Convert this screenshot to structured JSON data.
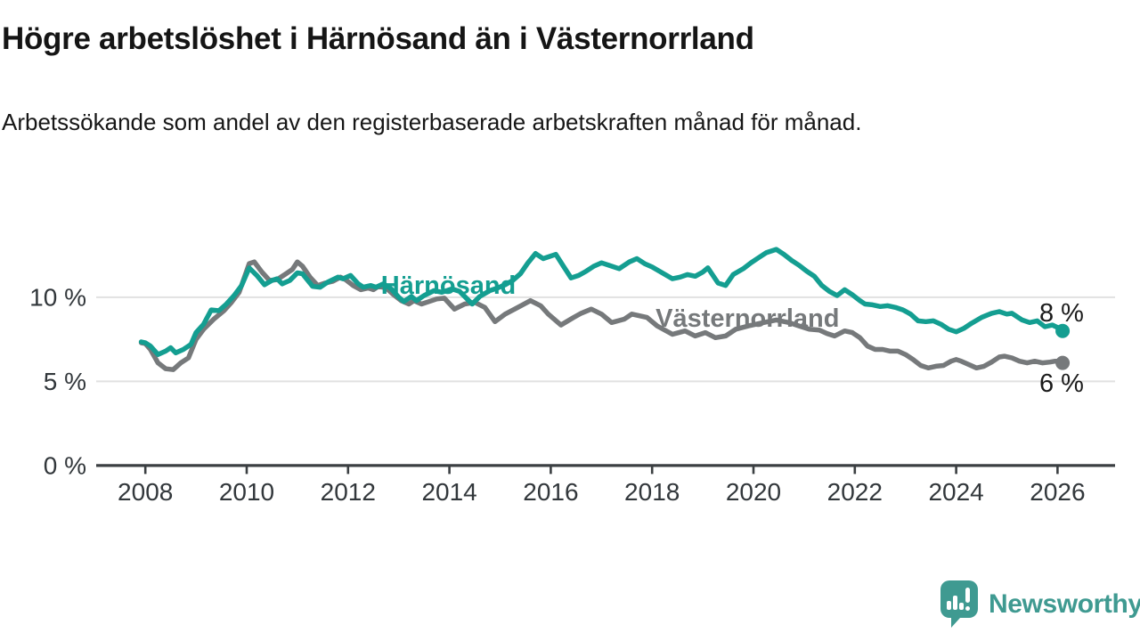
{
  "title": "Högre arbetslöshet i Härnösand än i Västernorrland",
  "subtitle": "Arbetssökande som andel av den registerbaserade arbetskraften månad för månad.",
  "branding": {
    "logo_text": "Newsworthy",
    "logo_icon": "bar-chart-speech-bubble-icon",
    "logo_color": "#3f9a91"
  },
  "colors": {
    "background": "#ffffff",
    "gridline": "#e1e1e1",
    "axis_line": "#3b3f42",
    "axis_text": "#32373b",
    "end_label_text": "#1b1b1b",
    "harnosand": "#149e91",
    "vasternorrland": "#76797b"
  },
  "chart_data": {
    "type": "line",
    "title": "Högre arbetslöshet i Härnösand än i Västernorrland",
    "xlabel": "",
    "ylabel": "Arbetssökande som andel av den registerbaserade arbetskraften (%)",
    "x_axis": {
      "ticks": [
        2008,
        2010,
        2012,
        2014,
        2016,
        2018,
        2020,
        2022,
        2024,
        2026
      ],
      "range": [
        2007.0,
        2027.1
      ]
    },
    "y_axis": {
      "ticks": [
        {
          "value": 0,
          "label": "0 %"
        },
        {
          "value": 5,
          "label": "5 %"
        },
        {
          "value": 10,
          "label": "10 %"
        }
      ],
      "gridlines": [
        5,
        10
      ],
      "range": [
        0,
        13.8
      ],
      "unit": "%"
    },
    "legend_position": "inline-labels",
    "grid": true,
    "series": [
      {
        "id": "vasternorrland",
        "name": "Västernorrland",
        "color": "#76797b",
        "label_pos": {
          "x": 2018.07,
          "y": 8.25
        },
        "end_label": "6 %",
        "end_label_pos": {
          "x": 2026.52,
          "y": 4.39
        },
        "latest_value": 6.1,
        "points": [
          [
            2007.92,
            7.3
          ],
          [
            2008.0,
            7.25
          ],
          [
            2008.1,
            6.9
          ],
          [
            2008.25,
            6.1
          ],
          [
            2008.4,
            5.75
          ],
          [
            2008.55,
            5.7
          ],
          [
            2008.7,
            6.1
          ],
          [
            2008.85,
            6.4
          ],
          [
            2009.0,
            7.5
          ],
          [
            2009.15,
            8.1
          ],
          [
            2009.35,
            8.7
          ],
          [
            2009.55,
            9.2
          ],
          [
            2009.7,
            9.7
          ],
          [
            2009.85,
            10.3
          ],
          [
            2010.05,
            12.0
          ],
          [
            2010.15,
            12.1
          ],
          [
            2010.3,
            11.5
          ],
          [
            2010.45,
            11.0
          ],
          [
            2010.6,
            11.05
          ],
          [
            2010.75,
            11.35
          ],
          [
            2010.9,
            11.65
          ],
          [
            2011.0,
            12.1
          ],
          [
            2011.1,
            11.85
          ],
          [
            2011.25,
            11.2
          ],
          [
            2011.4,
            10.7
          ],
          [
            2011.55,
            10.85
          ],
          [
            2011.7,
            10.95
          ],
          [
            2011.85,
            11.2
          ],
          [
            2011.95,
            11.05
          ],
          [
            2012.1,
            10.7
          ],
          [
            2012.25,
            10.45
          ],
          [
            2012.4,
            10.55
          ],
          [
            2012.5,
            10.45
          ],
          [
            2012.6,
            10.65
          ],
          [
            2012.75,
            10.55
          ],
          [
            2012.9,
            10.15
          ],
          [
            2013.05,
            9.8
          ],
          [
            2013.2,
            9.6
          ],
          [
            2013.3,
            9.8
          ],
          [
            2013.45,
            9.6
          ],
          [
            2013.6,
            9.75
          ],
          [
            2013.75,
            9.9
          ],
          [
            2013.9,
            9.95
          ],
          [
            2014.1,
            9.3
          ],
          [
            2014.3,
            9.6
          ],
          [
            2014.5,
            9.7
          ],
          [
            2014.7,
            9.4
          ],
          [
            2014.9,
            8.55
          ],
          [
            2015.1,
            9.0
          ],
          [
            2015.35,
            9.4
          ],
          [
            2015.6,
            9.8
          ],
          [
            2015.8,
            9.5
          ],
          [
            2015.95,
            9.0
          ],
          [
            2016.2,
            8.35
          ],
          [
            2016.45,
            8.8
          ],
          [
            2016.6,
            9.05
          ],
          [
            2016.8,
            9.3
          ],
          [
            2017.0,
            9.0
          ],
          [
            2017.2,
            8.5
          ],
          [
            2017.45,
            8.7
          ],
          [
            2017.6,
            9.0
          ],
          [
            2017.9,
            8.8
          ],
          [
            2018.1,
            8.3
          ],
          [
            2018.4,
            7.8
          ],
          [
            2018.65,
            8.0
          ],
          [
            2018.85,
            7.7
          ],
          [
            2019.05,
            7.9
          ],
          [
            2019.25,
            7.6
          ],
          [
            2019.45,
            7.7
          ],
          [
            2019.65,
            8.1
          ],
          [
            2019.9,
            8.3
          ],
          [
            2020.2,
            8.5
          ],
          [
            2020.45,
            8.65
          ],
          [
            2020.7,
            8.5
          ],
          [
            2020.9,
            8.3
          ],
          [
            2021.1,
            8.1
          ],
          [
            2021.3,
            8.05
          ],
          [
            2021.45,
            7.85
          ],
          [
            2021.6,
            7.7
          ],
          [
            2021.8,
            8.0
          ],
          [
            2021.95,
            7.9
          ],
          [
            2022.1,
            7.6
          ],
          [
            2022.25,
            7.1
          ],
          [
            2022.4,
            6.9
          ],
          [
            2022.55,
            6.9
          ],
          [
            2022.7,
            6.8
          ],
          [
            2022.85,
            6.8
          ],
          [
            2023.0,
            6.6
          ],
          [
            2023.15,
            6.3
          ],
          [
            2023.3,
            5.95
          ],
          [
            2023.45,
            5.8
          ],
          [
            2023.6,
            5.9
          ],
          [
            2023.75,
            5.95
          ],
          [
            2023.9,
            6.2
          ],
          [
            2024.0,
            6.3
          ],
          [
            2024.1,
            6.2
          ],
          [
            2024.25,
            6.0
          ],
          [
            2024.4,
            5.8
          ],
          [
            2024.55,
            5.9
          ],
          [
            2024.7,
            6.15
          ],
          [
            2024.85,
            6.45
          ],
          [
            2024.95,
            6.5
          ],
          [
            2025.1,
            6.4
          ],
          [
            2025.25,
            6.2
          ],
          [
            2025.4,
            6.1
          ],
          [
            2025.55,
            6.2
          ],
          [
            2025.7,
            6.1
          ],
          [
            2025.85,
            6.15
          ],
          [
            2025.95,
            6.2
          ],
          [
            2026.05,
            6.2
          ],
          [
            2026.1,
            6.1
          ]
        ]
      },
      {
        "id": "harnosand",
        "name": "Härnösand",
        "color": "#149e91",
        "label_pos": {
          "x": 2012.65,
          "y": 10.2
        },
        "end_label": "8 %",
        "end_label_pos": {
          "x": 2026.52,
          "y": 8.57
        },
        "latest_value": 8.0,
        "points": [
          [
            2007.92,
            7.35
          ],
          [
            2008.0,
            7.3
          ],
          [
            2008.1,
            7.1
          ],
          [
            2008.25,
            6.6
          ],
          [
            2008.4,
            6.8
          ],
          [
            2008.5,
            7.0
          ],
          [
            2008.6,
            6.7
          ],
          [
            2008.75,
            6.9
          ],
          [
            2008.9,
            7.2
          ],
          [
            2009.0,
            7.9
          ],
          [
            2009.15,
            8.4
          ],
          [
            2009.3,
            9.25
          ],
          [
            2009.45,
            9.2
          ],
          [
            2009.6,
            9.6
          ],
          [
            2009.75,
            10.1
          ],
          [
            2009.9,
            10.7
          ],
          [
            2010.05,
            11.75
          ],
          [
            2010.2,
            11.3
          ],
          [
            2010.35,
            10.75
          ],
          [
            2010.5,
            11.0
          ],
          [
            2010.6,
            11.1
          ],
          [
            2010.7,
            10.8
          ],
          [
            2010.85,
            11.0
          ],
          [
            2011.0,
            11.45
          ],
          [
            2011.1,
            11.4
          ],
          [
            2011.3,
            10.65
          ],
          [
            2011.45,
            10.6
          ],
          [
            2011.6,
            10.9
          ],
          [
            2011.8,
            11.2
          ],
          [
            2011.9,
            11.1
          ],
          [
            2012.05,
            11.3
          ],
          [
            2012.2,
            10.8
          ],
          [
            2012.3,
            10.6
          ],
          [
            2012.45,
            10.7
          ],
          [
            2012.55,
            10.6
          ],
          [
            2012.7,
            10.8
          ],
          [
            2012.85,
            10.5
          ],
          [
            2013.0,
            10.0
          ],
          [
            2013.1,
            9.75
          ],
          [
            2013.25,
            10.05
          ],
          [
            2013.35,
            9.8
          ],
          [
            2013.5,
            10.1
          ],
          [
            2013.7,
            10.4
          ],
          [
            2013.85,
            10.3
          ],
          [
            2014.05,
            10.5
          ],
          [
            2014.2,
            10.35
          ],
          [
            2014.45,
            9.6
          ],
          [
            2014.6,
            10.05
          ],
          [
            2014.8,
            10.4
          ],
          [
            2014.95,
            10.55
          ],
          [
            2015.1,
            10.75
          ],
          [
            2015.25,
            11.0
          ],
          [
            2015.4,
            11.4
          ],
          [
            2015.55,
            12.05
          ],
          [
            2015.7,
            12.6
          ],
          [
            2015.85,
            12.3
          ],
          [
            2016.0,
            12.45
          ],
          [
            2016.1,
            12.55
          ],
          [
            2016.25,
            11.85
          ],
          [
            2016.4,
            11.15
          ],
          [
            2016.55,
            11.3
          ],
          [
            2016.7,
            11.55
          ],
          [
            2016.85,
            11.85
          ],
          [
            2017.0,
            12.05
          ],
          [
            2017.15,
            11.9
          ],
          [
            2017.35,
            11.7
          ],
          [
            2017.55,
            12.1
          ],
          [
            2017.7,
            12.3
          ],
          [
            2017.85,
            12.0
          ],
          [
            2018.0,
            11.8
          ],
          [
            2018.2,
            11.45
          ],
          [
            2018.4,
            11.1
          ],
          [
            2018.55,
            11.2
          ],
          [
            2018.7,
            11.35
          ],
          [
            2018.85,
            11.25
          ],
          [
            2019.0,
            11.5
          ],
          [
            2019.1,
            11.75
          ],
          [
            2019.3,
            10.85
          ],
          [
            2019.45,
            10.7
          ],
          [
            2019.6,
            11.35
          ],
          [
            2019.8,
            11.7
          ],
          [
            2019.95,
            12.05
          ],
          [
            2020.1,
            12.35
          ],
          [
            2020.25,
            12.65
          ],
          [
            2020.45,
            12.85
          ],
          [
            2020.6,
            12.55
          ],
          [
            2020.75,
            12.2
          ],
          [
            2020.9,
            11.9
          ],
          [
            2021.05,
            11.55
          ],
          [
            2021.2,
            11.25
          ],
          [
            2021.35,
            10.7
          ],
          [
            2021.5,
            10.35
          ],
          [
            2021.65,
            10.1
          ],
          [
            2021.8,
            10.45
          ],
          [
            2021.95,
            10.15
          ],
          [
            2022.1,
            9.8
          ],
          [
            2022.2,
            9.6
          ],
          [
            2022.35,
            9.55
          ],
          [
            2022.5,
            9.45
          ],
          [
            2022.65,
            9.5
          ],
          [
            2022.8,
            9.4
          ],
          [
            2022.95,
            9.25
          ],
          [
            2023.1,
            9.0
          ],
          [
            2023.25,
            8.6
          ],
          [
            2023.4,
            8.55
          ],
          [
            2023.55,
            8.6
          ],
          [
            2023.7,
            8.4
          ],
          [
            2023.85,
            8.1
          ],
          [
            2024.0,
            7.95
          ],
          [
            2024.15,
            8.15
          ],
          [
            2024.3,
            8.45
          ],
          [
            2024.5,
            8.8
          ],
          [
            2024.7,
            9.05
          ],
          [
            2024.85,
            9.15
          ],
          [
            2025.0,
            9.0
          ],
          [
            2025.1,
            9.05
          ],
          [
            2025.3,
            8.65
          ],
          [
            2025.45,
            8.5
          ],
          [
            2025.6,
            8.6
          ],
          [
            2025.75,
            8.25
          ],
          [
            2025.9,
            8.35
          ],
          [
            2026.0,
            8.2
          ],
          [
            2026.1,
            8.0
          ]
        ]
      }
    ]
  }
}
